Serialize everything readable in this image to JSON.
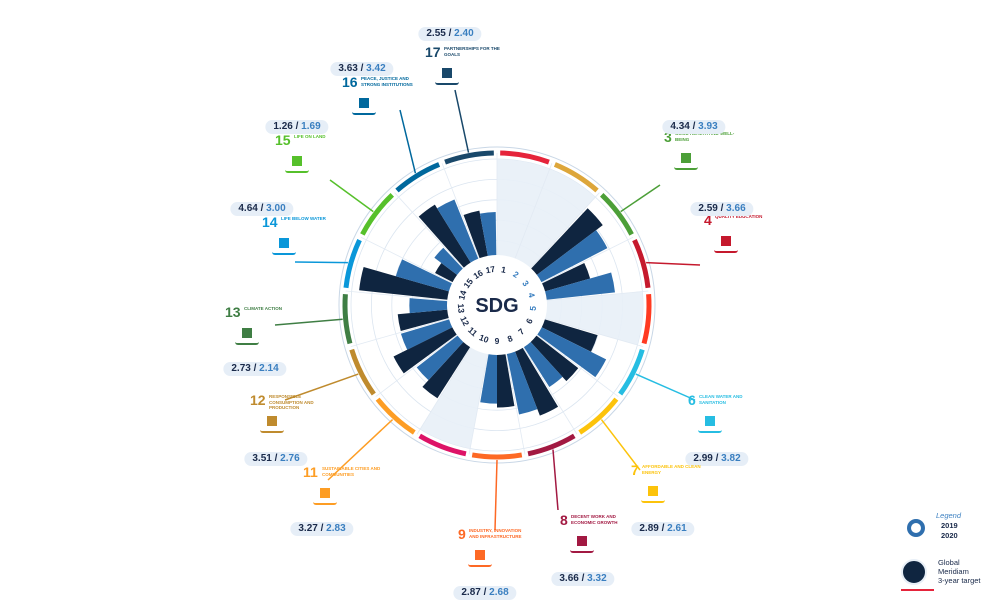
{
  "center_label": "SDG",
  "chart_data": {
    "type": "radial-bar",
    "series": [
      {
        "name": "2019"
      },
      {
        "name": "2020"
      }
    ],
    "goals": [
      {
        "num": "1",
        "name": "",
        "v2019": null,
        "v2020": null,
        "color": "#e5243b",
        "label": ""
      },
      {
        "num": "2",
        "name": "",
        "v2019": null,
        "v2020": null,
        "color": "#dda63a",
        "label": ""
      },
      {
        "num": "3",
        "name": "GOOD HEALTH AND WELL-BEING",
        "v2019": 4.34,
        "v2020": 3.93,
        "color": "#4c9f38",
        "label": "4.34 / 3.93"
      },
      {
        "num": "4",
        "name": "QUALITY EDUCATION",
        "v2019": 2.59,
        "v2020": 3.66,
        "color": "#c5192d",
        "label": "2.59 / 3.66"
      },
      {
        "num": "5",
        "name": "",
        "v2019": null,
        "v2020": null,
        "color": "#ff3a21",
        "label": ""
      },
      {
        "num": "6",
        "name": "CLEAN WATER AND SANITATION",
        "v2019": 2.99,
        "v2020": 3.82,
        "color": "#26bde2",
        "label": "2.99 / 3.82"
      },
      {
        "num": "7",
        "name": "AFFORDABLE AND CLEAN ENERGY",
        "v2019": 2.89,
        "v2020": 2.61,
        "color": "#fcc30b",
        "label": "2.89 / 2.61"
      },
      {
        "num": "8",
        "name": "DECENT WORK AND ECONOMIC GROWTH",
        "v2019": 3.66,
        "v2020": 3.32,
        "color": "#a21942",
        "label": "3.66 / 3.32"
      },
      {
        "num": "9",
        "name": "INDUSTRY, INNOVATION AND INFRASTRUCTURE",
        "v2019": 2.87,
        "v2020": 2.68,
        "color": "#fd6925",
        "label": "2.87 / 2.68"
      },
      {
        "num": "10",
        "name": "",
        "v2019": null,
        "v2020": null,
        "color": "#dd1367",
        "label": ""
      },
      {
        "num": "11",
        "name": "SUSTAINABLE CITIES AND COMMUNITIES",
        "v2019": 3.27,
        "v2020": 2.83,
        "color": "#fd9d24",
        "label": "3.27 / 2.83"
      },
      {
        "num": "12",
        "name": "RESPONSIBLE CONSUMPTION AND PRODUCTION",
        "v2019": 3.51,
        "v2020": 2.76,
        "color": "#bf8b2e",
        "label": "3.51 / 2.76"
      },
      {
        "num": "13",
        "name": "CLIMATE ACTION",
        "v2019": 2.73,
        "v2020": 2.14,
        "color": "#3f7e44",
        "label": "2.73 / 2.14"
      },
      {
        "num": "14",
        "name": "LIFE BELOW WATER",
        "v2019": 4.64,
        "v2020": 3.0,
        "color": "#0a97d9",
        "label": "4.64 / 3.00"
      },
      {
        "num": "15",
        "name": "LIFE ON LAND",
        "v2019": 1.26,
        "v2020": 1.69,
        "color": "#56c02b",
        "label": "1.26 / 1.69"
      },
      {
        "num": "16",
        "name": "PEACE, JUSTICE AND STRONG INSTITUTIONS",
        "v2019": 3.63,
        "v2020": 3.42,
        "color": "#00689d",
        "label": "3.63 / 3.42"
      },
      {
        "num": "17",
        "name": "PARTNERSHIPS FOR THE GOALS",
        "v2019": 2.55,
        "v2020": 2.4,
        "color": "#19486a",
        "label": "2.55 / 2.40"
      }
    ],
    "colors": {
      "v2019": "#0f2540",
      "v2020": "#2f6fae",
      "target": "#e8eff7"
    }
  },
  "legend": {
    "title": "Legend",
    "year1": "2019",
    "year2": "2020",
    "target_line1": "Global",
    "target_line2": "Meridiam",
    "target_line3": "3-year target"
  }
}
